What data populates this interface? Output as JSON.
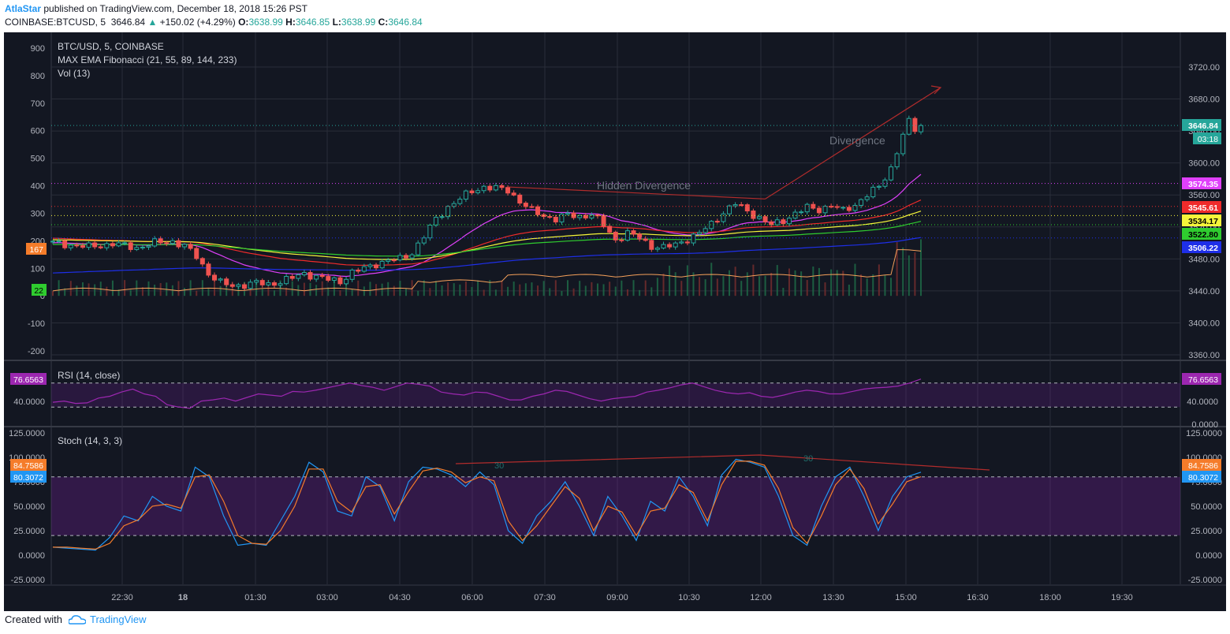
{
  "header": {
    "author": "AtlaStar",
    "published": "published on TradingView.com, December 18, 2018 15:26 PST",
    "symbol": "COINBASE:BTCUSD, 5",
    "price": "3646.84",
    "change": "+150.02 (+4.29%)",
    "o_label": "O:",
    "o": "3638.99",
    "h_label": "H:",
    "h": "3646.85",
    "l_label": "L:",
    "l": "3638.99",
    "c_label": "C:",
    "c": "3646.84"
  },
  "footer": {
    "created_with": "Created with",
    "brand": "TradingView"
  },
  "chart_data": [
    {
      "type": "candlestick",
      "legend": [
        "BTC/USD, 5, COINBASE",
        "MAX EMA Fibonacci (21, 55, 89, 144, 233)",
        "Vol (13)"
      ],
      "time_labels": [
        "22:30",
        "18",
        "01:30",
        "03:00",
        "04:30",
        "06:00",
        "07:30",
        "09:00",
        "10:30",
        "12:00",
        "13:30",
        "15:00",
        "16:30",
        "18:00",
        "19:30"
      ],
      "y_right_ticks": [
        3720,
        3680,
        3640,
        3600,
        3560,
        3520,
        3480,
        3440,
        3400,
        3360
      ],
      "y_left_ticks": [
        900,
        800,
        700,
        600,
        500,
        400,
        300,
        200,
        100,
        0,
        -100,
        -200
      ],
      "price_ylim": [
        3350,
        3740
      ],
      "price_path": [
        [
          0,
          3500
        ],
        [
          6,
          3495
        ],
        [
          10,
          3499
        ],
        [
          14,
          3494
        ],
        [
          17,
          3500
        ],
        [
          20,
          3502
        ],
        [
          22,
          3496
        ],
        [
          24,
          3483
        ],
        [
          26,
          3462
        ],
        [
          28,
          3450
        ],
        [
          30,
          3446
        ],
        [
          32,
          3448
        ],
        [
          34,
          3450
        ],
        [
          36,
          3448
        ],
        [
          38,
          3452
        ],
        [
          40,
          3456
        ],
        [
          42,
          3462
        ],
        [
          44,
          3458
        ],
        [
          46,
          3454
        ],
        [
          48,
          3452
        ],
        [
          50,
          3463
        ],
        [
          52,
          3468
        ],
        [
          54,
          3474
        ],
        [
          56,
          3478
        ],
        [
          58,
          3480
        ],
        [
          60,
          3488
        ],
        [
          62,
          3508
        ],
        [
          64,
          3530
        ],
        [
          66,
          3545
        ],
        [
          68,
          3555
        ],
        [
          70,
          3565
        ],
        [
          72,
          3570
        ],
        [
          74,
          3568
        ],
        [
          76,
          3566
        ],
        [
          78,
          3552
        ],
        [
          80,
          3540
        ],
        [
          82,
          3534
        ],
        [
          84,
          3530
        ],
        [
          86,
          3535
        ],
        [
          88,
          3533
        ],
        [
          90,
          3536
        ],
        [
          92,
          3522
        ],
        [
          94,
          3504
        ],
        [
          96,
          3512
        ],
        [
          98,
          3506
        ],
        [
          100,
          3496
        ],
        [
          102,
          3494
        ],
        [
          104,
          3498
        ],
        [
          106,
          3505
        ],
        [
          108,
          3512
        ],
        [
          110,
          3524
        ],
        [
          112,
          3538
        ],
        [
          114,
          3549
        ],
        [
          116,
          3540
        ],
        [
          118,
          3531
        ],
        [
          120,
          3522
        ],
        [
          122,
          3528
        ],
        [
          124,
          3537
        ],
        [
          126,
          3544
        ],
        [
          128,
          3542
        ],
        [
          130,
          3547
        ],
        [
          132,
          3540
        ],
        [
          134,
          3548
        ],
        [
          136,
          3560
        ],
        [
          138,
          3570
        ],
        [
          140,
          3594
        ],
        [
          142,
          3635
        ],
        [
          143,
          3651
        ],
        [
          144,
          3642
        ],
        [
          145,
          3646.84
        ]
      ],
      "annotations": [
        "Hidden Divergence",
        "Divergence"
      ],
      "levels": [
        {
          "value": "3646.84",
          "color": "#26a69a"
        },
        {
          "value": "3574.35",
          "color": "#e040fb"
        },
        {
          "value": "3545.61",
          "color": "#ef2b2b"
        },
        {
          "value": "3534.17",
          "color": "#f5f53a"
        },
        {
          "value": "3522.80",
          "color": "#2fcc2f"
        },
        {
          "value": "3506.22",
          "color": "#1e2fe8"
        }
      ],
      "countdown": "03:18",
      "left_badges": [
        "167",
        "22"
      ]
    },
    {
      "type": "line",
      "legend": "RSI (14, close)",
      "value": "76.6563",
      "y_ticks": [
        "40.0000",
        "0.0000"
      ],
      "band": [
        30,
        70
      ],
      "ylim": [
        0,
        100
      ],
      "series": [
        38,
        40,
        36,
        37,
        45,
        48,
        55,
        60,
        52,
        48,
        34,
        30,
        28,
        40,
        42,
        45,
        40,
        46,
        52,
        50,
        48,
        56,
        55,
        58,
        62,
        66,
        70,
        66,
        63,
        58,
        64,
        70,
        68,
        65,
        55,
        52,
        50,
        55,
        54,
        48,
        42,
        42,
        48,
        52,
        58,
        56,
        50,
        44,
        40,
        44,
        46,
        48,
        55,
        58,
        62,
        67,
        70,
        64,
        58,
        54,
        52,
        54,
        48,
        46,
        50,
        55,
        58,
        56,
        52,
        52,
        56,
        60,
        62,
        63,
        65,
        70,
        76.66
      ]
    },
    {
      "type": "line",
      "legend": "Stoch (14, 3, 3)",
      "y_ticks": [
        "125.0000",
        "100.0000",
        "75.0000",
        "50.0000",
        "25.0000",
        "0.0000",
        "-25.0000"
      ],
      "values": [
        "84.7586",
        "80.3072"
      ],
      "band": [
        20,
        80
      ],
      "ylim": [
        -30,
        125
      ],
      "series": [
        {
          "color": "#2196f3",
          "values": [
            8,
            7,
            6,
            5,
            18,
            40,
            35,
            60,
            50,
            45,
            90,
            80,
            40,
            10,
            12,
            10,
            35,
            60,
            95,
            85,
            45,
            40,
            80,
            70,
            35,
            75,
            90,
            88,
            82,
            70,
            85,
            72,
            25,
            12,
            40,
            55,
            75,
            50,
            20,
            60,
            40,
            15,
            55,
            45,
            80,
            60,
            30,
            82,
            98,
            95,
            90,
            60,
            20,
            10,
            50,
            80,
            90,
            60,
            25,
            60,
            80,
            84.76
          ]
        },
        {
          "color": "#f57c2a",
          "values": [
            8,
            8,
            7,
            6,
            12,
            30,
            36,
            50,
            52,
            48,
            80,
            82,
            55,
            20,
            12,
            11,
            25,
            50,
            88,
            88,
            55,
            44,
            70,
            72,
            42,
            65,
            86,
            89,
            85,
            74,
            80,
            76,
            35,
            15,
            30,
            50,
            70,
            58,
            25,
            50,
            44,
            20,
            45,
            48,
            72,
            64,
            35,
            72,
            96,
            96,
            92,
            68,
            28,
            12,
            40,
            72,
            88,
            68,
            32,
            52,
            75,
            80.31
          ]
        }
      ],
      "annotations": [
        "30",
        "30"
      ]
    }
  ]
}
